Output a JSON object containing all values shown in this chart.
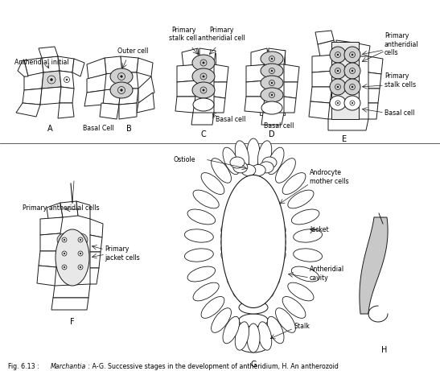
{
  "bg_color": "#ffffff",
  "line_color": "#1a1a1a",
  "fig_caption": "Fig. 6.13 : ",
  "fig_caption_italic": "Marchantia",
  "fig_caption_rest": " : A-G. Successive stages in the development of antheridium, H. An antherozoid"
}
